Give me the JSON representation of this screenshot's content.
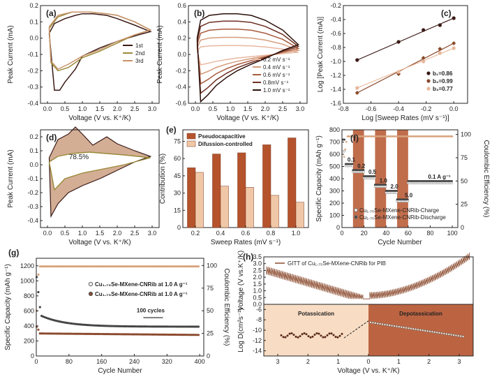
{
  "colors": {
    "dark": "#3a1a16",
    "brown": "#8b4a2e",
    "tan": "#c8926a",
    "light": "#e7b89a",
    "olive": "#9a8a3a",
    "shade": "#c89a7a",
    "highlight": "#b5532d",
    "ce_color": "#d8a37c"
  },
  "chart_data": [
    {
      "id": "a",
      "type": "line",
      "panel_label": "(a)",
      "xlabel": "Voltage (V vs. K⁺/K)",
      "ylabel": "Peak Current (mA)",
      "xlim": [
        -0.2,
        3.2
      ],
      "ylim": [
        -0.4,
        0.2
      ],
      "xticks": [
        "0.0",
        "0.5",
        "1.0",
        "1.5",
        "2.0",
        "2.5",
        "3.0"
      ],
      "yticks": [
        "-0.4",
        "-0.3",
        "-0.2",
        "-0.1",
        "0.0",
        "0.1",
        "0.2"
      ],
      "legend": [
        "1st",
        "2nd",
        "3rd"
      ],
      "series": [
        {
          "name": "1st",
          "x": [
            0.05,
            0.2,
            0.5,
            0.8,
            1.0,
            1.3,
            1.7,
            2.0,
            2.5,
            2.95,
            2.95,
            2.6,
            2.0,
            1.5,
            1.2,
            1.0,
            0.8,
            0.5,
            0.35,
            0.2,
            0.05
          ],
          "y": [
            0.03,
            0.09,
            0.12,
            0.14,
            0.15,
            0.15,
            0.14,
            0.12,
            0.08,
            0.04,
            0.04,
            0.02,
            -0.02,
            -0.06,
            -0.09,
            -0.11,
            -0.19,
            -0.27,
            -0.32,
            -0.32,
            0.03
          ]
        },
        {
          "name": "2nd",
          "x": [
            0.05,
            0.3,
            0.7,
            1.2,
            1.7,
            2.0,
            2.5,
            2.95,
            2.95,
            2.5,
            2.0,
            1.5,
            1.0,
            0.6,
            0.3,
            0.1,
            0.05
          ],
          "y": [
            0.06,
            0.13,
            0.16,
            0.16,
            0.15,
            0.14,
            0.1,
            0.05,
            0.05,
            0.02,
            -0.03,
            -0.08,
            -0.12,
            -0.18,
            -0.2,
            -0.15,
            0.06
          ]
        },
        {
          "name": "3rd",
          "x": [
            0.05,
            0.3,
            0.7,
            1.2,
            1.7,
            2.0,
            2.5,
            2.95,
            2.95,
            2.5,
            2.0,
            1.5,
            1.0,
            0.6,
            0.3,
            0.1,
            0.05
          ],
          "y": [
            0.07,
            0.14,
            0.16,
            0.16,
            0.15,
            0.14,
            0.1,
            0.05,
            0.05,
            0.02,
            -0.02,
            -0.07,
            -0.11,
            -0.16,
            -0.19,
            -0.14,
            0.07
          ]
        }
      ]
    },
    {
      "id": "b",
      "type": "line",
      "panel_label": "(b)",
      "xlabel": "Voltage (V vs. K⁺/K)",
      "ylabel": "Peak Current (mA)",
      "xlim": [
        -0.2,
        3.2
      ],
      "ylim": [
        -0.6,
        0.6
      ],
      "xticks": [
        "0.0",
        "0.5",
        "1.0",
        "1.5",
        "2.0",
        "2.5",
        "3.0"
      ],
      "yticks": [
        "-0.6",
        "-0.4",
        "-0.2",
        "0.0",
        "0.2",
        "0.4",
        "0.6"
      ],
      "legend": [
        "0.2 mV s⁻¹",
        "0.4 mV s⁻¹",
        "0.6 mV s⁻¹",
        "0.8mV s⁻¹",
        "1.0 mV s⁻¹"
      ],
      "series": [
        {
          "name": "0.2 mV s⁻¹",
          "scale": 0.22
        },
        {
          "name": "0.4 mV s⁻¹",
          "scale": 0.42
        },
        {
          "name": "0.6 mV s⁻¹",
          "scale": 0.62
        },
        {
          "name": "0.8mV s⁻¹",
          "scale": 0.82
        },
        {
          "name": "1.0 mV s⁻¹",
          "scale": 1.0
        }
      ]
    },
    {
      "id": "c",
      "type": "scatter",
      "panel_label": "(c)",
      "xlabel": "Log [Sweep Rates (mV s⁻¹)]",
      "ylabel": "Log [Peak Current (mA)]",
      "xlim": [
        -0.8,
        0.1
      ],
      "ylim": [
        -1.6,
        -0.2
      ],
      "xticks": [
        "-0.8",
        "-0.6",
        "-0.4",
        "-0.2",
        "0.0"
      ],
      "yticks": [
        "-1.6",
        "-1.4",
        "-1.2",
        "-1.0",
        "-0.8",
        "-0.6",
        "-0.4",
        "-0.2"
      ],
      "series": [
        {
          "name": "b₁=0.86",
          "x": [
            -0.7,
            -0.4,
            -0.22,
            -0.1,
            0.0
          ],
          "y": [
            -0.98,
            -0.72,
            -0.55,
            -0.48,
            -0.38
          ]
        },
        {
          "name": "b₂=0.99",
          "x": [
            -0.7,
            -0.4,
            -0.22,
            -0.1,
            0.0
          ],
          "y": [
            -1.45,
            -1.18,
            -0.95,
            -0.82,
            -0.74
          ]
        },
        {
          "name": "b₃=0.77",
          "x": [
            -0.7,
            -0.4,
            -0.22,
            -0.1,
            0.0
          ],
          "y": [
            -1.38,
            -1.15,
            -1.0,
            -0.88,
            -0.81
          ]
        }
      ]
    },
    {
      "id": "d",
      "type": "area",
      "panel_label": "(d)",
      "xlabel": "Voltage (V vs. K⁺/K)",
      "ylabel": "Peak Current (mA)",
      "xlim": [
        -0.2,
        3.2
      ],
      "ylim": [
        -0.45,
        0.25
      ],
      "xticks": [
        "0.0",
        "0.5",
        "1.0",
        "1.5",
        "2.0",
        "2.5",
        "3.0"
      ],
      "yticks": [
        "-0.4",
        "-0.3",
        "-0.2",
        "-0.1",
        "0.0",
        "0.1",
        "0.2"
      ],
      "annotation": "78.5%"
    },
    {
      "id": "e",
      "type": "bar",
      "panel_label": "(e)",
      "xlabel": "Sweep Rates (mV s⁻¹)",
      "ylabel": "Contribution (%)",
      "categories": [
        "0.2",
        "0.4",
        "0.6",
        "0.8",
        "1.0"
      ],
      "ylim": [
        0,
        85
      ],
      "yticks": [
        "0",
        "15",
        "30",
        "45",
        "60",
        "75"
      ],
      "series": [
        {
          "name": "Pseudocapacitive",
          "values": [
            52,
            64,
            65,
            72,
            78
          ]
        },
        {
          "name": "Difussion-controlled",
          "values": [
            48,
            36,
            35,
            28,
            22
          ]
        }
      ]
    },
    {
      "id": "f",
      "type": "scatter",
      "panel_label": "(f)",
      "xlabel": "Cycle Number",
      "ylabel": "Specific Capacity (mAh g⁻¹)",
      "y2label": "Coulombic Efficiency (%)",
      "xlim": [
        0,
        105
      ],
      "ylim": [
        0,
        800
      ],
      "y2lim": [
        0,
        105
      ],
      "xticks": [
        "0",
        "20",
        "40",
        "60",
        "80",
        "100"
      ],
      "yticks": [
        "0",
        "100",
        "200",
        "300",
        "400",
        "500",
        "600",
        "700",
        "800"
      ],
      "y2ticks": [
        "0",
        "25",
        "50",
        "75",
        "100"
      ],
      "rate_labels": [
        "0.1",
        "0.2",
        "0.5",
        "1.0",
        "2.0",
        "5.0",
        "0.1 A g⁻¹"
      ],
      "legend": [
        "Cu₁.₇₅Se-MXene-CNRib-Charge",
        "Cu₁.₇₅Se-MXene-CNRib-Discharge"
      ]
    },
    {
      "id": "g",
      "type": "scatter",
      "panel_label": "(g)",
      "xlabel": "Cycle Number",
      "ylabel": "Specific Capacity (mAh g⁻¹)",
      "y2label": "Coulombic Efficiency (%)",
      "xlim": [
        0,
        410
      ],
      "ylim": [
        0,
        1300
      ],
      "y2lim": [
        0,
        108
      ],
      "xticks": [
        "0",
        "80",
        "160",
        "240",
        "320",
        "400"
      ],
      "yticks": [
        "0",
        "200",
        "400",
        "600",
        "800",
        "1000",
        "1200"
      ],
      "y2ticks": [
        "0",
        "25",
        "50",
        "75",
        "100"
      ],
      "legend": [
        "Cu₁.₇₅Se-MXene-CNRib at 1.0 A g⁻¹",
        "Cu₁.₇₅Se-MXene-CNRib at 1.0 A g⁻¹"
      ],
      "annotation": "100 cycles"
    },
    {
      "id": "h",
      "type": "line",
      "panel_label": "(h)",
      "xlabel": "Voltage (V vs. K⁺/K)",
      "ylabel_top": "Voltage (V vs.K⁺/K)",
      "ylabel_bottom": "Log D(cm²s⁻¹)",
      "top_yticks": [
        "0.0",
        "0.5",
        "1.0",
        "1.5",
        "2.0",
        "2.5",
        "3.0",
        "3.5"
      ],
      "bottom_yticks": [
        "-14",
        "-12",
        "-10",
        "-8",
        "-6"
      ],
      "xticks": [
        "3",
        "2",
        "1",
        "0",
        "1",
        "2",
        "3"
      ],
      "legend": "GITT of Cu₁.₇₅Se-MXene-CNRib for PIB",
      "region_left": "Potassication",
      "region_right": "Depotassication"
    }
  ]
}
